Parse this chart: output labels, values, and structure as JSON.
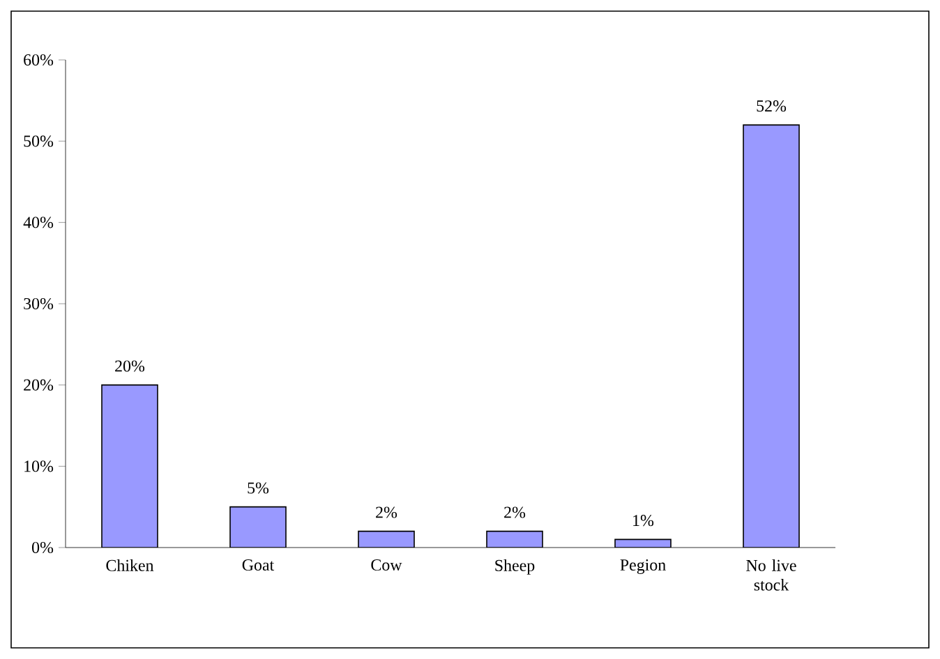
{
  "chart_data": {
    "type": "bar",
    "categories": [
      "Chiken",
      "Goat",
      "Cow",
      "Sheep",
      "Pegion",
      "No live stock"
    ],
    "values": [
      20,
      5,
      2,
      2,
      1,
      52
    ],
    "value_labels": [
      "20%",
      "5%",
      "2%",
      "2%",
      "1%",
      "52%"
    ],
    "color": "#9999ff",
    "ylim": [
      0,
      60
    ],
    "yticks": [
      {
        "value": 0,
        "label": "0%"
      },
      {
        "value": 10,
        "label": "10%"
      },
      {
        "value": 20,
        "label": "20%"
      },
      {
        "value": 30,
        "label": "30%"
      },
      {
        "value": 40,
        "label": "40%"
      },
      {
        "value": 50,
        "label": "50%"
      },
      {
        "value": 60,
        "label": "60%"
      }
    ]
  }
}
